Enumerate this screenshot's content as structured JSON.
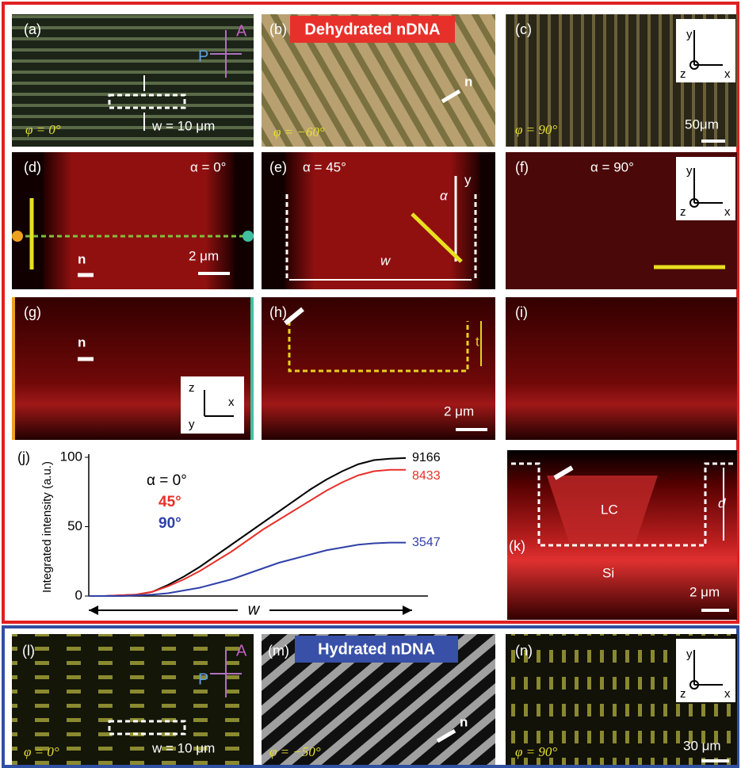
{
  "headers": [
    "Dehydrated nDNA",
    "Hydrated nDNA"
  ],
  "panels": [
    {
      "label": "(a)",
      "texts": [
        "A",
        "P",
        "φ = 0°",
        "w = 10 μm"
      ]
    },
    {
      "label": "(b)",
      "texts": [
        "n",
        "φ = −60°"
      ]
    },
    {
      "label": "(c)",
      "texts": [
        "y",
        "z",
        "x",
        "φ = 90°",
        "50μm"
      ]
    },
    {
      "label": "(d)",
      "texts": [
        "α = 0°",
        "n",
        "2 μm"
      ]
    },
    {
      "label": "(e)",
      "texts": [
        "α = 45°",
        "y",
        "α",
        "w"
      ]
    },
    {
      "label": "(f)",
      "texts": [
        "α = 90°",
        "y",
        "z",
        "x"
      ]
    },
    {
      "label": "(g)",
      "texts": [
        "n",
        "z",
        "x",
        "y"
      ]
    },
    {
      "label": "(h)",
      "texts": [
        "t",
        "2 μm"
      ]
    },
    {
      "label": "(i)"
    },
    {
      "label": "(k)",
      "texts": [
        "LC",
        "Si",
        "d",
        "2 μm"
      ]
    },
    {
      "label": "(l)",
      "texts": [
        "A",
        "P",
        "φ = 0°",
        "w = 10 μm"
      ]
    },
    {
      "label": "(m)",
      "texts": [
        "n",
        "φ = −50°"
      ]
    },
    {
      "label": "(n)",
      "texts": [
        "y",
        "z",
        "x",
        "φ = 90°",
        "30 μm"
      ]
    }
  ],
  "chart_data": {
    "type": "line",
    "label": "(j)",
    "ylabel": "Integrated intensity (a.u.)",
    "xlabel": "w",
    "ylim": [
      0,
      100
    ],
    "yticks": [
      0,
      50,
      100
    ],
    "series": [
      {
        "name": "α = 0°",
        "color": "#000000",
        "end_label": "9166",
        "values": [
          0,
          0,
          0.5,
          1,
          3,
          8,
          14,
          21,
          29,
          37,
          45,
          53,
          61,
          69,
          77,
          84,
          90,
          95,
          98,
          99,
          99.5
        ]
      },
      {
        "name": "45°",
        "color": "#e8302a",
        "end_label": "8433",
        "values": [
          0,
          0,
          0.5,
          1,
          3,
          7,
          12,
          18,
          25,
          32,
          40,
          48,
          55,
          62,
          69,
          76,
          82,
          87,
          90,
          91,
          91
        ]
      },
      {
        "name": "90°",
        "color": "#3040a8",
        "end_label": "3547",
        "values": [
          0,
          0,
          0,
          0.5,
          1,
          2,
          4,
          6,
          9,
          12,
          16,
          20,
          24,
          27,
          30,
          33,
          35,
          37,
          38,
          38.5,
          38.5
        ]
      }
    ]
  }
}
